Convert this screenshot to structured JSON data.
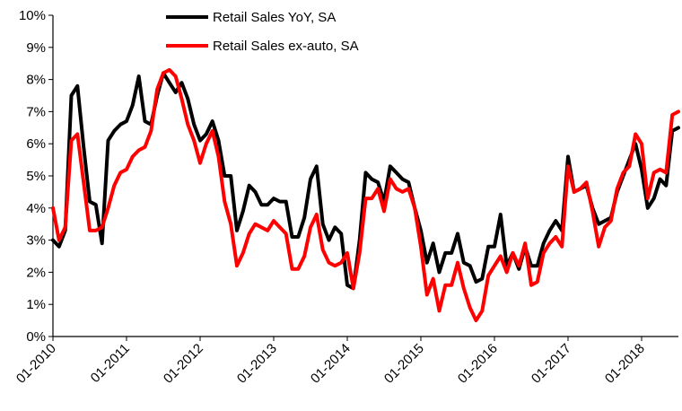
{
  "chart_data": {
    "type": "line",
    "title": "",
    "xlabel": "",
    "ylabel": "",
    "ylim": [
      0,
      10
    ],
    "y_ticks": [
      "0%",
      "1%",
      "2%",
      "3%",
      "4%",
      "5%",
      "6%",
      "7%",
      "8%",
      "9%",
      "10%"
    ],
    "x_ticks": [
      "01-2010",
      "01-2011",
      "01-2012",
      "01-2013",
      "01-2014",
      "01-2015",
      "01-2016",
      "01-2017",
      "01-2018"
    ],
    "x_range": [
      "2010-01",
      "2018-07"
    ],
    "grid": false,
    "legend_position": "top",
    "x": [
      "2010-01",
      "2010-02",
      "2010-03",
      "2010-04",
      "2010-05",
      "2010-06",
      "2010-07",
      "2010-08",
      "2010-09",
      "2010-10",
      "2010-11",
      "2010-12",
      "2011-01",
      "2011-02",
      "2011-03",
      "2011-04",
      "2011-05",
      "2011-06",
      "2011-07",
      "2011-08",
      "2011-09",
      "2011-10",
      "2011-11",
      "2011-12",
      "2012-01",
      "2012-02",
      "2012-03",
      "2012-04",
      "2012-05",
      "2012-06",
      "2012-07",
      "2012-08",
      "2012-09",
      "2012-10",
      "2012-11",
      "2012-12",
      "2013-01",
      "2013-02",
      "2013-03",
      "2013-04",
      "2013-05",
      "2013-06",
      "2013-07",
      "2013-08",
      "2013-09",
      "2013-10",
      "2013-11",
      "2013-12",
      "2014-01",
      "2014-02",
      "2014-03",
      "2014-04",
      "2014-05",
      "2014-06",
      "2014-07",
      "2014-08",
      "2014-09",
      "2014-10",
      "2014-11",
      "2014-12",
      "2015-01",
      "2015-02",
      "2015-03",
      "2015-04",
      "2015-05",
      "2015-06",
      "2015-07",
      "2015-08",
      "2015-09",
      "2015-10",
      "2015-11",
      "2015-12",
      "2016-01",
      "2016-02",
      "2016-03",
      "2016-04",
      "2016-05",
      "2016-06",
      "2016-07",
      "2016-08",
      "2016-09",
      "2016-10",
      "2016-11",
      "2016-12",
      "2017-01",
      "2017-02",
      "2017-03",
      "2017-04",
      "2017-05",
      "2017-06",
      "2017-07",
      "2017-08",
      "2017-09",
      "2017-10",
      "2017-11",
      "2017-12",
      "2018-01",
      "2018-02",
      "2018-03",
      "2018-04",
      "2018-05",
      "2018-06",
      "2018-07"
    ],
    "series": [
      {
        "name": "Retail Sales YoY, SA",
        "color": "#000000",
        "values": [
          3.0,
          2.8,
          3.3,
          7.5,
          7.8,
          5.9,
          4.2,
          4.1,
          2.9,
          6.1,
          6.4,
          6.6,
          6.7,
          7.2,
          8.1,
          6.7,
          6.6,
          7.5,
          8.2,
          7.9,
          7.6,
          7.9,
          7.4,
          6.6,
          6.1,
          6.3,
          6.7,
          6.1,
          5.0,
          5.0,
          3.3,
          3.9,
          4.7,
          4.5,
          4.1,
          4.1,
          4.3,
          4.2,
          4.2,
          3.1,
          3.1,
          3.7,
          4.9,
          5.3,
          3.5,
          3.0,
          3.4,
          3.2,
          1.6,
          1.5,
          3.0,
          5.1,
          4.9,
          4.8,
          4.2,
          5.3,
          5.1,
          4.9,
          4.8,
          4.0,
          3.3,
          2.3,
          2.9,
          2.0,
          2.6,
          2.6,
          3.2,
          2.3,
          2.2,
          1.7,
          1.8,
          2.8,
          2.8,
          3.8,
          2.2,
          2.6,
          2.1,
          2.8,
          2.2,
          2.2,
          2.9,
          3.3,
          3.6,
          3.3,
          5.6,
          4.5,
          4.6,
          4.7,
          4.0,
          3.5,
          3.6,
          3.7,
          4.5,
          5.0,
          5.5,
          6.0,
          5.2,
          4.0,
          4.3,
          4.9,
          4.7,
          6.4,
          6.5
        ]
      },
      {
        "name": "Retail Sales ex-auto, SA",
        "color": "#ff0000",
        "values": [
          4.0,
          3.0,
          3.4,
          6.1,
          6.3,
          4.8,
          3.3,
          3.3,
          3.4,
          4.0,
          4.7,
          5.1,
          5.2,
          5.6,
          5.8,
          5.9,
          6.4,
          7.7,
          8.2,
          8.3,
          8.1,
          7.4,
          6.6,
          6.1,
          5.4,
          6.0,
          6.4,
          5.6,
          4.2,
          3.5,
          2.2,
          2.6,
          3.2,
          3.5,
          3.4,
          3.3,
          3.6,
          3.4,
          3.2,
          2.1,
          2.1,
          2.5,
          3.4,
          3.8,
          2.7,
          2.3,
          2.2,
          2.3,
          2.6,
          1.5,
          2.6,
          4.3,
          4.3,
          4.6,
          3.9,
          4.9,
          4.6,
          4.5,
          4.6,
          4.0,
          2.8,
          1.3,
          1.8,
          0.8,
          1.6,
          1.6,
          2.3,
          1.5,
          0.9,
          0.5,
          0.8,
          1.9,
          2.2,
          2.5,
          2.0,
          2.6,
          2.2,
          2.9,
          1.6,
          1.7,
          2.6,
          2.9,
          3.1,
          2.8,
          5.3,
          4.5,
          4.6,
          4.8,
          3.9,
          2.8,
          3.4,
          3.6,
          4.6,
          5.1,
          5.3,
          6.3,
          6.0,
          4.3,
          5.1,
          5.2,
          5.1,
          6.9,
          7.0
        ]
      }
    ]
  }
}
